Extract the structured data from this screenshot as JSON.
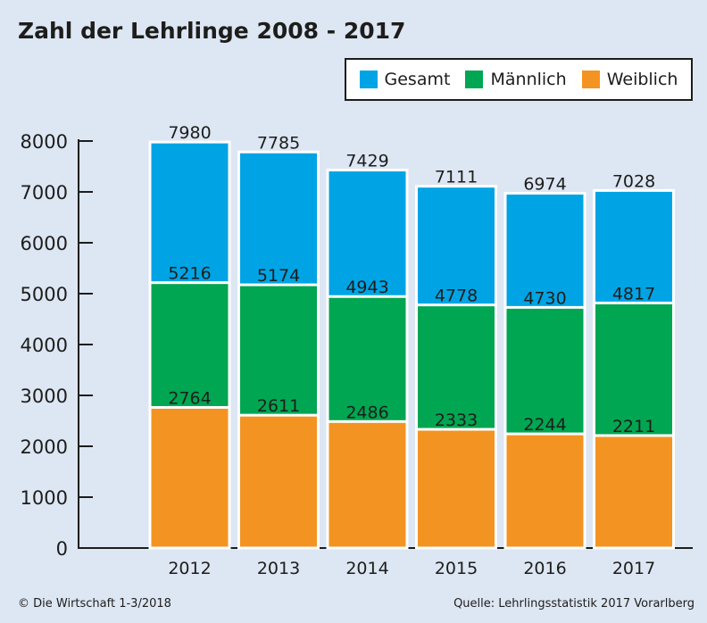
{
  "title": "Zahl der Lehrlinge 2008 - 2017",
  "legend": [
    {
      "label": "Gesamt",
      "color": "#00a4e4"
    },
    {
      "label": "Männlich",
      "color": "#00a651"
    },
    {
      "label": "Weiblich",
      "color": "#f39422"
    }
  ],
  "footer": {
    "copyright": "© Die Wirtschaft 1-3/2018",
    "source": "Quelle: Lehrlingsstatistik 2017 Vorarlberg"
  },
  "chart_data": {
    "type": "bar",
    "stacked": false,
    "overlapping": true,
    "title": "Zahl der Lehrlinge 2008 - 2017",
    "categories": [
      "2012",
      "2013",
      "2014",
      "2015",
      "2016",
      "2017"
    ],
    "series": [
      {
        "name": "Gesamt",
        "color": "#00a4e4",
        "values": [
          7980,
          7785,
          7429,
          7111,
          6974,
          7028
        ]
      },
      {
        "name": "Männlich",
        "color": "#00a651",
        "values": [
          5216,
          5174,
          4943,
          4778,
          4730,
          4817
        ]
      },
      {
        "name": "Weiblich",
        "color": "#f39422",
        "values": [
          2764,
          2611,
          2486,
          2333,
          2244,
          2211
        ]
      }
    ],
    "ylim": [
      0,
      8000
    ],
    "yticks": [
      0,
      1000,
      2000,
      3000,
      4000,
      5000,
      6000,
      7000,
      8000
    ],
    "xlabel": "",
    "ylabel": "",
    "grid": false,
    "legend_position": "top-right"
  }
}
